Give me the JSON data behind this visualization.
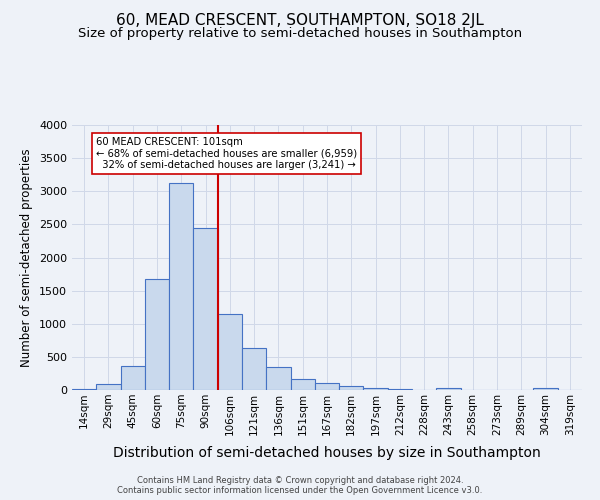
{
  "title": "60, MEAD CRESCENT, SOUTHAMPTON, SO18 2JL",
  "subtitle": "Size of property relative to semi-detached houses in Southampton",
  "xlabel": "Distribution of semi-detached houses by size in Southampton",
  "ylabel": "Number of semi-detached properties",
  "footnote1": "Contains HM Land Registry data © Crown copyright and database right 2024.",
  "footnote2": "Contains public sector information licensed under the Open Government Licence v3.0.",
  "bar_labels": [
    "14sqm",
    "29sqm",
    "45sqm",
    "60sqm",
    "75sqm",
    "90sqm",
    "106sqm",
    "121sqm",
    "136sqm",
    "151sqm",
    "167sqm",
    "182sqm",
    "197sqm",
    "212sqm",
    "228sqm",
    "243sqm",
    "258sqm",
    "273sqm",
    "289sqm",
    "304sqm",
    "319sqm"
  ],
  "bar_values": [
    20,
    90,
    360,
    1680,
    3130,
    2440,
    1150,
    630,
    340,
    170,
    110,
    65,
    35,
    15,
    5,
    25,
    0,
    0,
    0,
    25,
    0
  ],
  "bar_color": "#c9d9ed",
  "bar_edge_color": "#4472c4",
  "property_label": "60 MEAD CRESCENT: 101sqm",
  "pct_smaller": 68,
  "n_smaller": 6959,
  "pct_larger": 32,
  "n_larger": 3241,
  "vline_color": "#cc0000",
  "ylim": [
    0,
    4000
  ],
  "grid_color": "#d0d8e8",
  "bg_color": "#eef2f8",
  "title_fontsize": 11,
  "subtitle_fontsize": 9.5,
  "xlabel_fontsize": 10,
  "ylabel_fontsize": 8.5,
  "tick_fontsize": 7.5,
  "footnote_fontsize": 6.0
}
